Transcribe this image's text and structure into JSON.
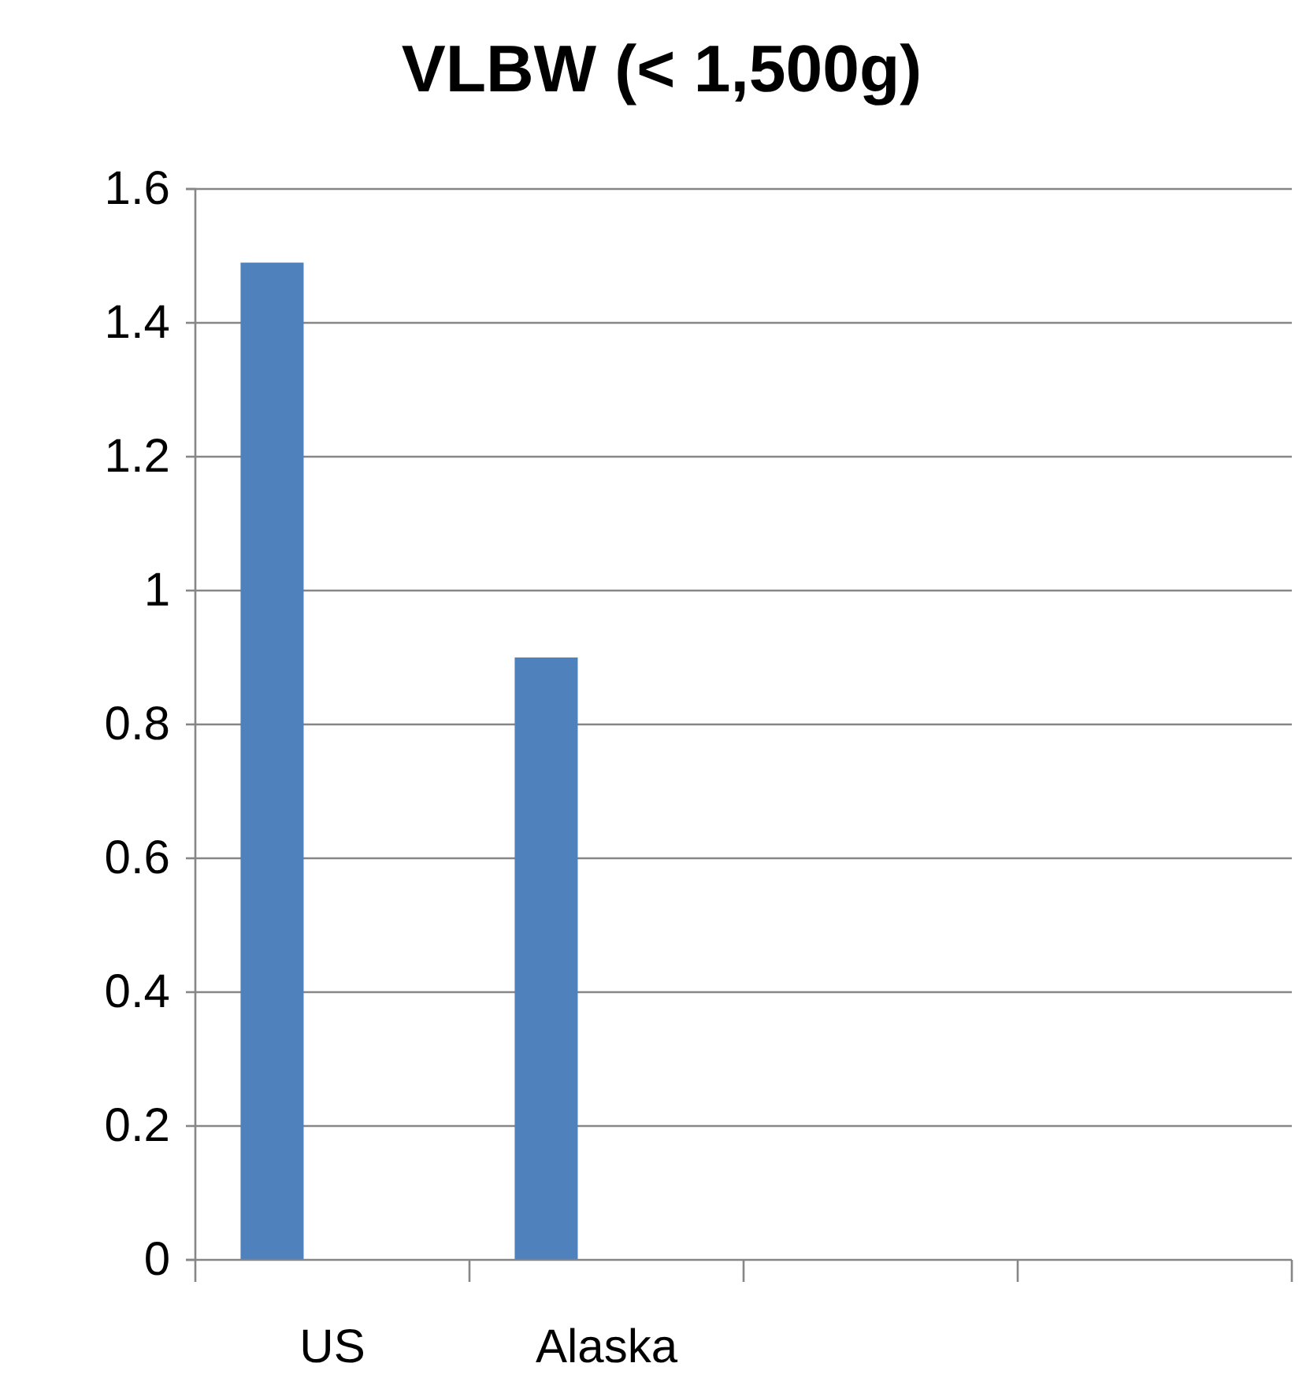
{
  "chart_data": {
    "type": "bar",
    "title": "VLBW (< 1,500g)",
    "categories": [
      "US",
      "Alaska",
      null,
      null
    ],
    "values": [
      1.49,
      0.9,
      null,
      null
    ],
    "color": "#4f81bd",
    "ylim": [
      0,
      1.6
    ],
    "yticks": [
      0,
      0.2,
      0.4,
      0.6,
      0.8,
      1,
      1.2,
      1.4,
      1.6
    ],
    "grid": "y"
  }
}
